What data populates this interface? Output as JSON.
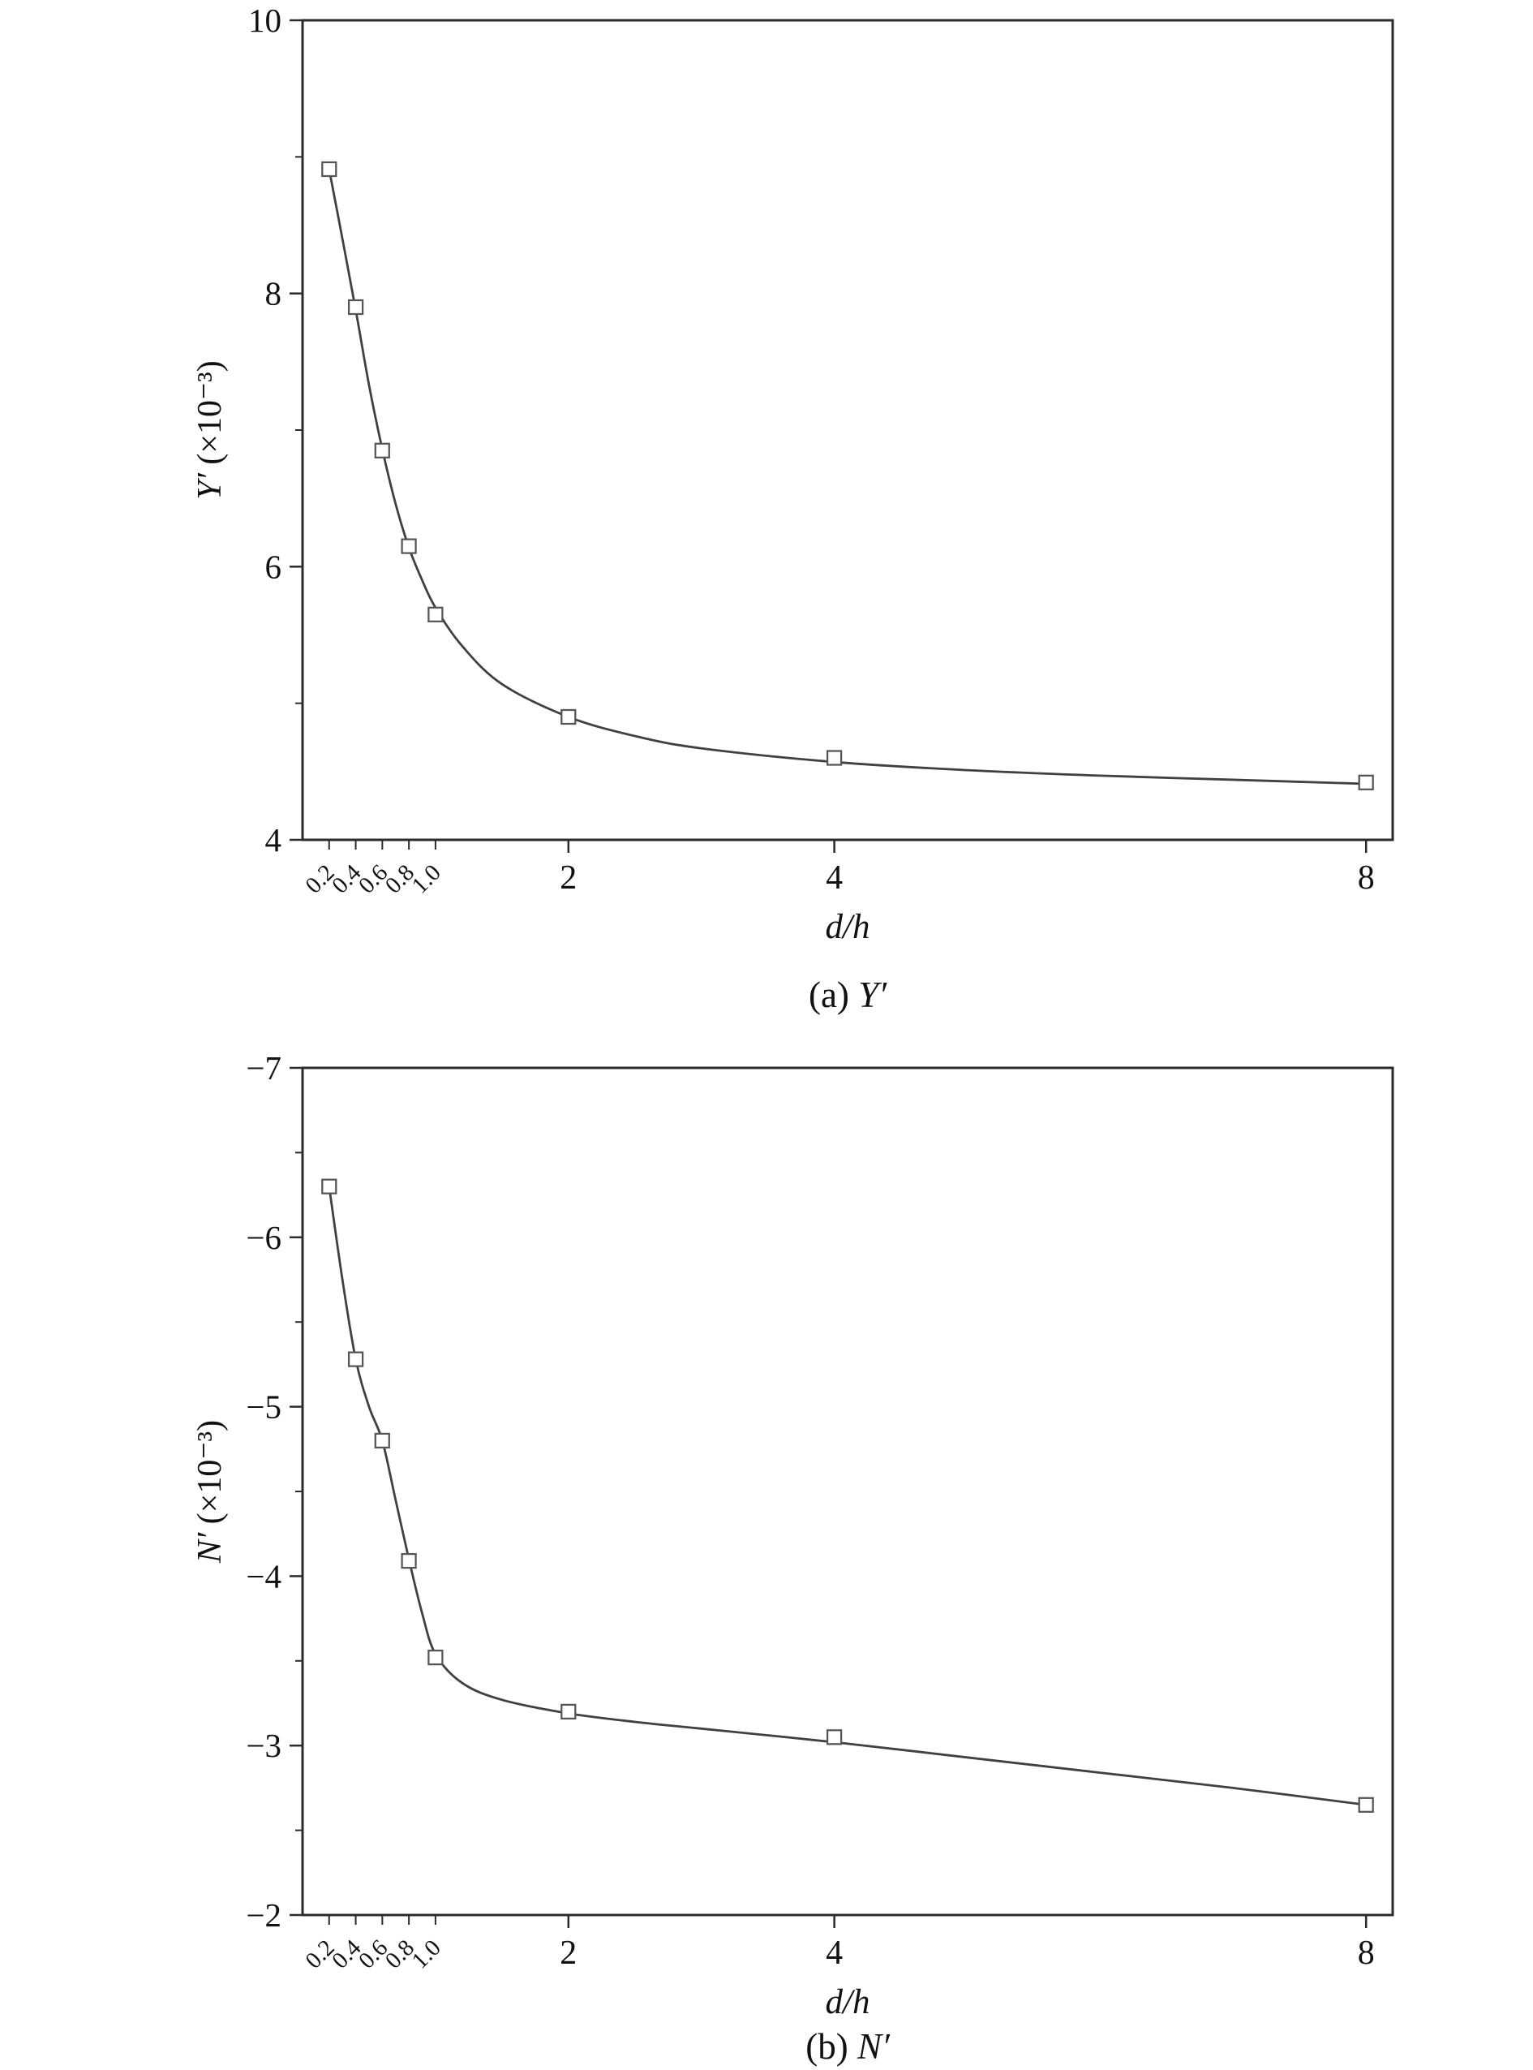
{
  "style": {
    "axis_color": "#2b2b2b",
    "curve_color": "#404040",
    "marker_stroke": "#555555",
    "marker_fill": "#ffffff",
    "text_color": "#111111"
  },
  "chart_data": [
    {
      "id": "a",
      "type": "scatter",
      "caption": "(a) Y′",
      "caption_prefix": "(a) ",
      "caption_var": "Y′",
      "xlabel": "d/h",
      "ylabel": "Y′ (×10⁻³)",
      "ylabel_var": "Y′",
      "ylabel_unit": " (×10⁻³)",
      "xlim": [
        0,
        8.2
      ],
      "ylim_bottom": 4,
      "ylim_top": 10,
      "grid": false,
      "legend": "none",
      "xticks_small": {
        "values": [
          0.2,
          0.4,
          0.6,
          0.8,
          1.0
        ],
        "labels": [
          "0.2",
          "0.4",
          "0.6",
          "0.8",
          "1.0"
        ]
      },
      "xticks_major": {
        "values": [
          2,
          4,
          8
        ],
        "labels": [
          "2",
          "4",
          "8"
        ]
      },
      "yticks_major": {
        "values": [
          4,
          6,
          8,
          10
        ],
        "labels": [
          "4",
          "6",
          "8",
          "10"
        ]
      },
      "yticks_minor": [
        5,
        7,
        9
      ],
      "points": {
        "x": [
          0.2,
          0.4,
          0.6,
          0.8,
          1.0,
          2,
          4,
          8
        ],
        "y": [
          8.91,
          7.9,
          6.85,
          6.15,
          5.65,
          4.9,
          4.6,
          4.42
        ]
      },
      "fit_curve": [
        [
          0.2,
          8.91
        ],
        [
          0.3,
          8.4
        ],
        [
          0.4,
          7.88
        ],
        [
          0.5,
          7.33
        ],
        [
          0.6,
          6.86
        ],
        [
          0.7,
          6.46
        ],
        [
          0.8,
          6.14
        ],
        [
          0.9,
          5.9
        ],
        [
          1.0,
          5.7
        ],
        [
          1.2,
          5.42
        ],
        [
          1.5,
          5.14
        ],
        [
          2.0,
          4.9
        ],
        [
          2.5,
          4.76
        ],
        [
          3.0,
          4.67
        ],
        [
          4.0,
          4.57
        ],
        [
          5.0,
          4.51
        ],
        [
          6.0,
          4.47
        ],
        [
          7.0,
          4.44
        ],
        [
          8.0,
          4.41
        ]
      ]
    },
    {
      "id": "b",
      "type": "scatter",
      "caption": "(b) N′",
      "caption_prefix": "(b) ",
      "caption_var": "N′",
      "xlabel": "d/h",
      "ylabel": "N′ (×10⁻³)",
      "ylabel_var": "N′",
      "ylabel_unit": " (×10⁻³)",
      "xlim": [
        0,
        8.2
      ],
      "ylim_bottom": -2,
      "ylim_top": -7,
      "grid": false,
      "legend": "none",
      "xticks_small": {
        "values": [
          0.2,
          0.4,
          0.6,
          0.8,
          1.0
        ],
        "labels": [
          "0.2",
          "0.4",
          "0.6",
          "0.8",
          "1.0"
        ]
      },
      "xticks_major": {
        "values": [
          2,
          4,
          8
        ],
        "labels": [
          "2",
          "4",
          "8"
        ]
      },
      "yticks_major": {
        "values": [
          -7,
          -6,
          -5,
          -4,
          -3,
          -2
        ],
        "labels": [
          "−7",
          "−6",
          "−5",
          "−4",
          "−3",
          "−2"
        ]
      },
      "yticks_minor": [
        -6.5,
        -5.5,
        -4.5,
        -3.5,
        -2.5
      ],
      "points": {
        "x": [
          0.2,
          0.4,
          0.6,
          0.8,
          1.0,
          2,
          4,
          8
        ],
        "y": [
          -6.3,
          -5.28,
          -4.8,
          -4.09,
          -3.52,
          -3.2,
          -3.05,
          -2.65
        ]
      },
      "fit_curve": [
        [
          0.2,
          -6.3
        ],
        [
          0.3,
          -5.75
        ],
        [
          0.4,
          -5.28
        ],
        [
          0.5,
          -5.0
        ],
        [
          0.6,
          -4.8
        ],
        [
          0.7,
          -4.45
        ],
        [
          0.8,
          -4.1
        ],
        [
          0.9,
          -3.78
        ],
        [
          1.0,
          -3.54
        ],
        [
          1.2,
          -3.37
        ],
        [
          1.5,
          -3.27
        ],
        [
          2.0,
          -3.19
        ],
        [
          2.5,
          -3.14
        ],
        [
          3.0,
          -3.1
        ],
        [
          4.0,
          -3.02
        ],
        [
          5.0,
          -2.93
        ],
        [
          6.0,
          -2.84
        ],
        [
          7.0,
          -2.75
        ],
        [
          8.0,
          -2.65
        ]
      ]
    }
  ]
}
